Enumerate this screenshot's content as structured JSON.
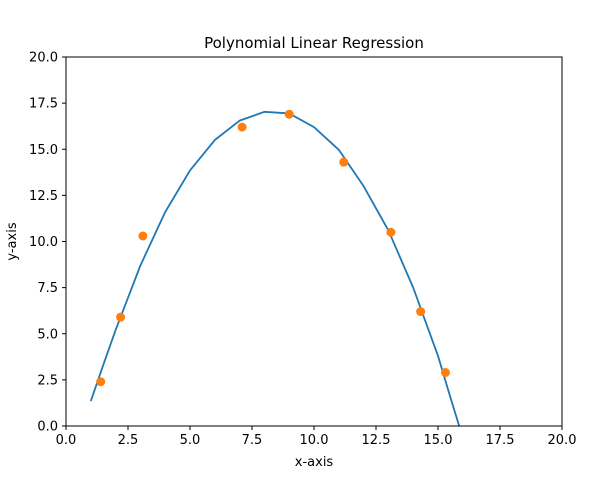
{
  "chart_data": {
    "type": "scatter",
    "title": "Polynomial Linear Regression",
    "xlabel": "x-axis",
    "ylabel": "y-axis",
    "xlim": [
      0,
      20
    ],
    "ylim": [
      0,
      20
    ],
    "grid": false,
    "x_ticks": [
      "0.0",
      "2.5",
      "5.0",
      "7.5",
      "10.0",
      "12.5",
      "15.0",
      "17.5",
      "20.0"
    ],
    "y_ticks": [
      "0.0",
      "2.5",
      "5.0",
      "7.5",
      "10.0",
      "12.5",
      "15.0",
      "17.5",
      "20.0"
    ],
    "series": [
      {
        "kind": "line",
        "color": "#1f77b4",
        "x": [
          1.0,
          1.5,
          2.0,
          2.5,
          3.0,
          4.0,
          5.0,
          6.0,
          7.0,
          8.0,
          9.0,
          10.0,
          11.0,
          12.0,
          13.0,
          14.0,
          15.0,
          15.5,
          15.9
        ],
        "y": [
          1.35,
          3.3,
          5.2,
          6.95,
          8.7,
          11.6,
          13.85,
          15.5,
          16.55,
          17.03,
          16.94,
          16.2,
          14.97,
          13.0,
          10.6,
          7.5,
          3.8,
          1.55,
          -0.2
        ]
      },
      {
        "kind": "scatter",
        "color": "#ff7f0e",
        "x": [
          1.4,
          2.2,
          3.1,
          7.1,
          9.0,
          11.2,
          13.1,
          14.3,
          15.3
        ],
        "y": [
          2.4,
          5.9,
          10.3,
          16.2,
          16.9,
          14.3,
          10.5,
          6.2,
          2.9
        ]
      }
    ]
  }
}
